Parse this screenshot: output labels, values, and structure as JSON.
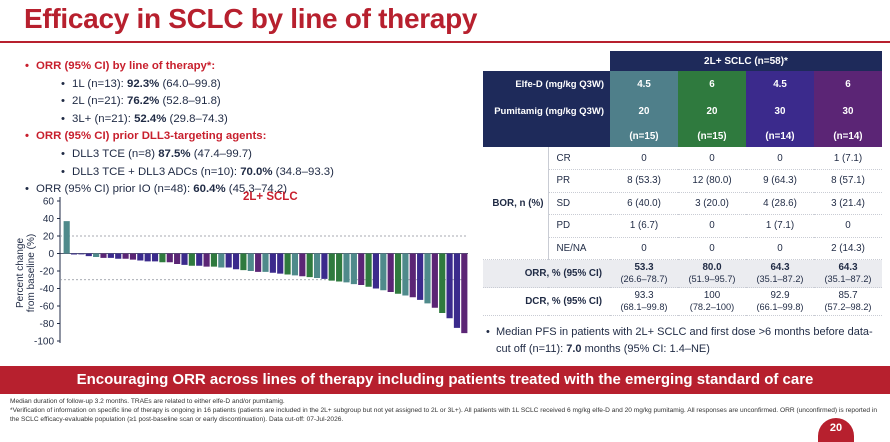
{
  "title": "Efficacy in SCLC by line of therapy",
  "bullets": [
    {
      "style": "red",
      "text": "ORR (95% CI) by line of therapy*:"
    },
    {
      "style": "sub",
      "label": "1L (n=13): ",
      "bold": "92.3%",
      "rest": " (64.0–99.8)"
    },
    {
      "style": "sub",
      "label": "2L (n=21): ",
      "bold": "76.2%",
      "rest": " (52.8–91.8)"
    },
    {
      "style": "sub",
      "label": "3L+ (n=21): ",
      "bold": "52.4%",
      "rest": " (29.8–74.3)"
    },
    {
      "style": "red",
      "text": "ORR (95% CI) prior DLL3-targeting agents:"
    },
    {
      "style": "sub",
      "label": "DLL3 TCE (n=8) ",
      "bold": "87.5%",
      "rest": " (47.4–99.7)"
    },
    {
      "style": "sub",
      "label": "DLL3 TCE + DLL3 ADCs (n=10): ",
      "bold": "70.0%",
      "rest": " (34.8–93.3)"
    },
    {
      "style": "black",
      "label": "ORR (95% CI) prior IO (n=48): ",
      "bold": "60.4%",
      "rest": " (45.3–74.2)"
    }
  ],
  "chart_data": {
    "type": "bar",
    "title": "2L+ SCLC",
    "ylabel": "Percent change from baseline (%)",
    "ylim": [
      -100,
      60
    ],
    "yticks": [
      60,
      40,
      20,
      0,
      -20,
      -40,
      -60,
      -80,
      -100
    ],
    "reference_lines": [
      20,
      -30
    ],
    "series_colors": {
      "elfe45_pumi20": "#4f8a8b",
      "elfe6_pumi20": "#2f7a3e",
      "elfe45_pumi30": "#3b2a8c",
      "elfe6_pumi30": "#5b2575"
    },
    "values": [
      37,
      0,
      -1,
      -3,
      -4,
      -5,
      -5,
      -6,
      -6,
      -7,
      -8,
      -9,
      -9,
      -10,
      -10,
      -12,
      -13,
      -14,
      -14,
      -15,
      -15,
      -16,
      -16,
      -18,
      -19,
      -20,
      -21,
      -21,
      -22,
      -23,
      -24,
      -25,
      -26,
      -27,
      -28,
      -29,
      -31,
      -32,
      -33,
      -35,
      -36,
      -38,
      -40,
      -42,
      -44,
      -46,
      -48,
      -50,
      -53,
      -57,
      -62,
      -68,
      -74,
      -85,
      -91
    ],
    "bar_colors": [
      "#4f8a8b",
      "#3b2a8c",
      "#3b2a8c",
      "#3b2a8c",
      "#4f8a8b",
      "#5b2575",
      "#3b2a8c",
      "#3b2a8c",
      "#5b2575",
      "#5b2575",
      "#3b2a8c",
      "#3b2a8c",
      "#3b2a8c",
      "#2f7a3e",
      "#5b2575",
      "#5b2575",
      "#3b2a8c",
      "#2f7a3e",
      "#3b2a8c",
      "#5b2575",
      "#2f7a3e",
      "#4f8a8b",
      "#3b2a8c",
      "#3b2a8c",
      "#2f7a3e",
      "#4f8a8b",
      "#5b2575",
      "#4f8a8b",
      "#3b2a8c",
      "#3b2a8c",
      "#2f7a3e",
      "#4f8a8b",
      "#5b2575",
      "#2f7a3e",
      "#4f8a8b",
      "#3b2a8c",
      "#2f7a3e",
      "#2f7a3e",
      "#4f8a8b",
      "#4f8a8b",
      "#5b2575",
      "#2f7a3e",
      "#3b2a8c",
      "#4f8a8b",
      "#5b2575",
      "#2f7a3e",
      "#4f8a8b",
      "#5b2575",
      "#3b2a8c",
      "#4f8a8b",
      "#5b2575",
      "#2f7a3e",
      "#3b2a8c",
      "#3b2a8c",
      "#5b2575"
    ]
  },
  "table": {
    "header": "2L+ SCLC (n=58)*",
    "elfe_label": "Elfe-D (mg/kg Q3W)",
    "pumi_label": "Pumitamig (mg/kg Q3W)",
    "elfe_doses": [
      "4.5",
      "6",
      "4.5",
      "6"
    ],
    "pumi_doses": [
      "20",
      "20",
      "30",
      "30"
    ],
    "ns": [
      "(n=15)",
      "(n=15)",
      "(n=14)",
      "(n=14)"
    ],
    "bor_label": "BOR, n (%)",
    "bor_rows": [
      {
        "resp": "CR",
        "vals": [
          "0",
          "0",
          "0",
          "1 (7.1)"
        ]
      },
      {
        "resp": "PR",
        "vals": [
          "8 (53.3)",
          "12 (80.0)",
          "9 (64.3)",
          "8 (57.1)"
        ]
      },
      {
        "resp": "SD",
        "vals": [
          "6 (40.0)",
          "3 (20.0)",
          "4 (28.6)",
          "3 (21.4)"
        ]
      },
      {
        "resp": "PD",
        "vals": [
          "1 (6.7)",
          "0",
          "1 (7.1)",
          "0"
        ]
      },
      {
        "resp": "NE/NA",
        "vals": [
          "0",
          "0",
          "0",
          "2 (14.3)"
        ]
      }
    ],
    "orr_label": "ORR, % (95% CI)",
    "orr_vals": [
      "53.3",
      "80.0",
      "64.3",
      "64.3"
    ],
    "orr_ci": [
      "(26.6–78.7)",
      "(51.9–95.7)",
      "(35.1–87.2)",
      "(35.1–87.2)"
    ],
    "dcr_label": "DCR, % (95% CI)",
    "dcr_vals": [
      "93.3",
      "100",
      "92.9",
      "85.7"
    ],
    "dcr_ci": [
      "(68.1–99.8)",
      "(78.2–100)",
      "(66.1–99.8)",
      "(57.2–98.2)"
    ]
  },
  "median": {
    "text1": "Median PFS in patients with 2L+ SCLC and first dose >6 months before data-cut off (n=11): ",
    "bold": "7.0",
    "text2": " months (95% CI: 1.4–NE)"
  },
  "banner": "Encouraging ORR across lines of therapy including patients treated with the emerging standard of care",
  "footnotes": [
    "Median duration of follow-up 3.2 months. TRAEs are related to either elfe-D and/or pumitamig.",
    "*Verification of information on specific line of therapy is ongoing in 16 patients (patients are included in the 2L+ subgroup but not yet assigned to 2L or 3L+). All patients with 1L SCLC received 6 mg/kg elfe-D and 20 mg/kg pumitamig. All responses are unconfirmed. ORR (unconfirmed) is reported in the SCLC efficacy-evaluable population (≥1 post-baseline scan or early discontinuation). Data cut-off: 07-Jul-2026."
  ],
  "page_number": "20"
}
